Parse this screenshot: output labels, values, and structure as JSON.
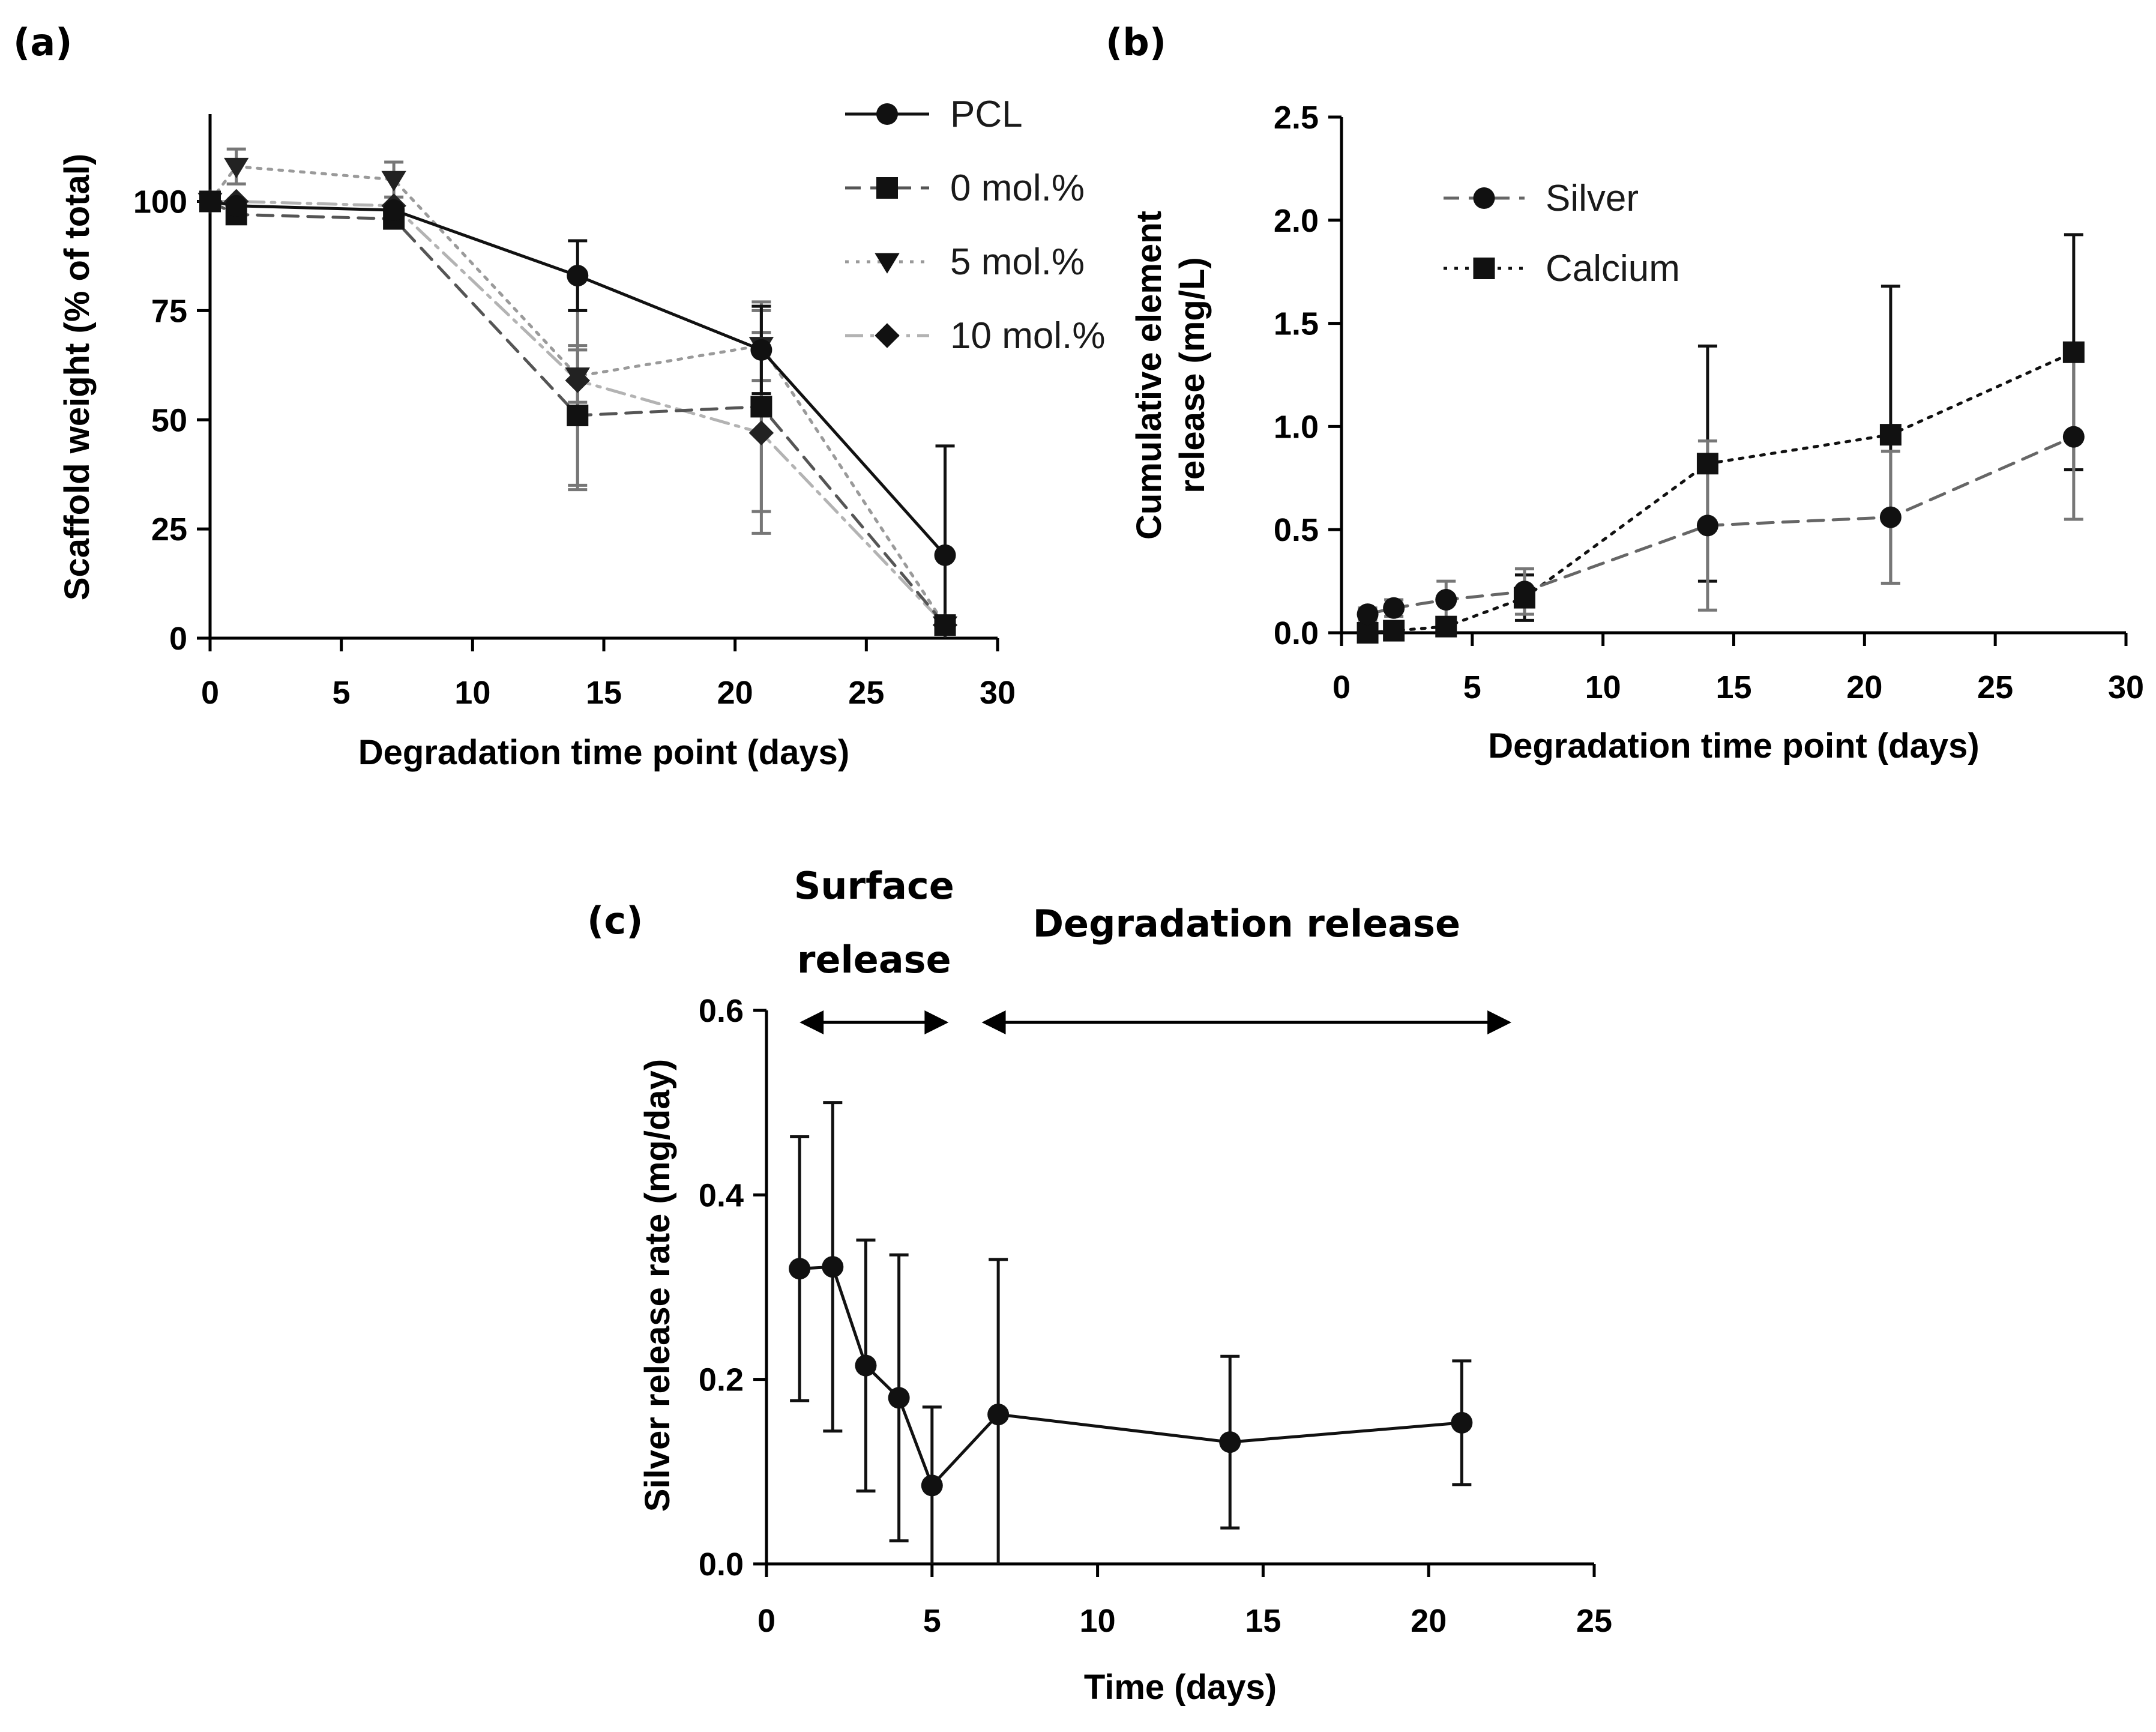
{
  "figure": {
    "panel_labels": [
      "(a)",
      "(b)",
      "(c)"
    ]
  },
  "chart_data": [
    {
      "panel": "(a)",
      "type": "line",
      "xlabel": "Degradation time point (days)",
      "ylabel": "Scaffold weight (% of total)",
      "xlim": [
        0,
        30
      ],
      "ylim": [
        0,
        120
      ],
      "xticks": [
        0,
        5,
        10,
        15,
        20,
        25,
        30
      ],
      "yticks": [
        0,
        25,
        50,
        75,
        100
      ],
      "grid": false,
      "legend_position": "top-right",
      "series": [
        {
          "name": "PCL",
          "marker": "circle",
          "line": "solid",
          "color": "#111111",
          "points": [
            {
              "x": 0,
              "y": 100,
              "err": 0
            },
            {
              "x": 1,
              "y": 99,
              "err": 0
            },
            {
              "x": 7,
              "y": 98,
              "err": 0
            },
            {
              "x": 14,
              "y": 83,
              "err": 8
            },
            {
              "x": 21,
              "y": 66,
              "err": 10
            },
            {
              "x": 28,
              "y": 19,
              "err": 25
            }
          ]
        },
        {
          "name": "0 mol.%",
          "marker": "square",
          "line": "dashed",
          "color": "#555555",
          "points": [
            {
              "x": 0,
              "y": 100,
              "err": 0
            },
            {
              "x": 1,
              "y": 97,
              "err": 0
            },
            {
              "x": 7,
              "y": 96,
              "err": 0
            },
            {
              "x": 14,
              "y": 51,
              "err": 16
            },
            {
              "x": 21,
              "y": 53,
              "err": 24
            },
            {
              "x": 28,
              "y": 3,
              "err": 2
            }
          ]
        },
        {
          "name": "5 mol.%",
          "marker": "triangle-down",
          "line": "dotted",
          "color": "#9a9a9a",
          "points": [
            {
              "x": 0,
              "y": 100,
              "err": 0
            },
            {
              "x": 1,
              "y": 108,
              "err": 4
            },
            {
              "x": 7,
              "y": 105,
              "err": 4
            },
            {
              "x": 14,
              "y": 60,
              "err": 6
            },
            {
              "x": 21,
              "y": 67,
              "err": 8
            },
            {
              "x": 28,
              "y": 3,
              "err": 2
            }
          ]
        },
        {
          "name": "10 mol.%",
          "marker": "diamond",
          "line": "dash-dot",
          "color": "#b3b3b3",
          "points": [
            {
              "x": 0,
              "y": 100,
              "err": 0
            },
            {
              "x": 1,
              "y": 100,
              "err": 0
            },
            {
              "x": 7,
              "y": 99,
              "err": 0
            },
            {
              "x": 14,
              "y": 59,
              "err": 25
            },
            {
              "x": 21,
              "y": 47,
              "err": 23
            },
            {
              "x": 28,
              "y": 3,
              "err": 2
            }
          ]
        }
      ]
    },
    {
      "panel": "(b)",
      "type": "line",
      "xlabel": "Degradation time point (days)",
      "ylabel": [
        "Cumulative element",
        "release (mg/L)"
      ],
      "xlim": [
        0,
        30
      ],
      "ylim": [
        0,
        2.5
      ],
      "xticks": [
        0,
        5,
        10,
        15,
        20,
        25,
        30
      ],
      "yticks": [
        "0.0",
        "0.5",
        "1.0",
        "1.5",
        "2.0",
        "2.5"
      ],
      "grid": false,
      "legend_position": "top-left",
      "series": [
        {
          "name": "Silver",
          "marker": "circle",
          "line": "dashed",
          "color": "#666666",
          "points": [
            {
              "x": 1,
              "y": 0.09,
              "err": 0.03
            },
            {
              "x": 2,
              "y": 0.12,
              "err": 0.04
            },
            {
              "x": 4,
              "y": 0.16,
              "err": 0.09
            },
            {
              "x": 7,
              "y": 0.2,
              "err": 0.11
            },
            {
              "x": 14,
              "y": 0.52,
              "err": 0.41
            },
            {
              "x": 21,
              "y": 0.56,
              "err": 0.32
            },
            {
              "x": 28,
              "y": 0.95,
              "err": 0.4
            }
          ]
        },
        {
          "name": "Calcium",
          "marker": "square",
          "line": "dotted",
          "color": "#111111",
          "points": [
            {
              "x": 1,
              "y": 0.0,
              "err": 0.01
            },
            {
              "x": 2,
              "y": 0.01,
              "err": 0.01
            },
            {
              "x": 4,
              "y": 0.03,
              "err": 0.02
            },
            {
              "x": 7,
              "y": 0.17,
              "err": 0.11
            },
            {
              "x": 14,
              "y": 0.82,
              "err": 0.57
            },
            {
              "x": 21,
              "y": 0.96,
              "err": 0.72
            },
            {
              "x": 28,
              "y": 1.36,
              "err": 0.57
            }
          ]
        }
      ]
    },
    {
      "panel": "(c)",
      "type": "line",
      "xlabel": "Time (days)",
      "ylabel": "Silver release rate (mg/day)",
      "xlim": [
        0,
        25
      ],
      "ylim": [
        0,
        0.6
      ],
      "xticks": [
        0,
        5,
        10,
        15,
        20,
        25
      ],
      "yticks": [
        "0.0",
        "0.2",
        "0.4",
        "0.6"
      ],
      "grid": false,
      "annotations": [
        {
          "text": [
            "Surface",
            "release"
          ],
          "from_x": 1,
          "to_x": 5.5
        },
        {
          "text": [
            "Degradation release"
          ],
          "from_x": 6.5,
          "to_x": 22.5
        }
      ],
      "series": [
        {
          "marker": "circle",
          "line": "solid",
          "color": "#111111",
          "points": [
            {
              "x": 1,
              "y": 0.32,
              "err": 0.143
            },
            {
              "x": 2,
              "y": 0.322,
              "err": 0.178
            },
            {
              "x": 3,
              "y": 0.215,
              "err": 0.136
            },
            {
              "x": 4,
              "y": 0.18,
              "err": 0.155
            },
            {
              "x": 5,
              "y": 0.085,
              "err": 0.085
            },
            {
              "x": 7,
              "y": 0.162,
              "err": 0.168
            },
            {
              "x": 14,
              "y": 0.132,
              "err": 0.093
            },
            {
              "x": 21,
              "y": 0.153,
              "err": 0.067
            }
          ]
        }
      ]
    }
  ]
}
